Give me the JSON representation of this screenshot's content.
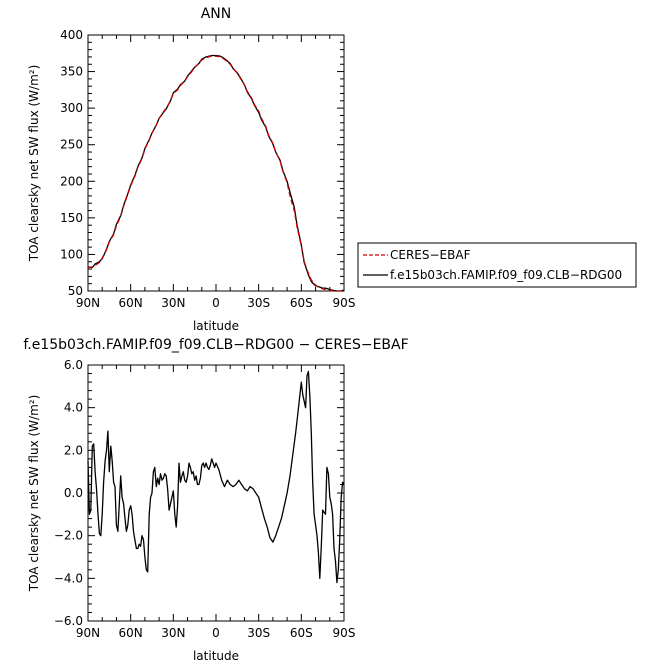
{
  "chart_data": [
    {
      "type": "line",
      "title": "ANN",
      "xlabel": "latitude",
      "ylabel": "TOA clearsky net SW flux (W/m²)",
      "xlim": [
        90,
        -90
      ],
      "ylim": [
        50,
        400
      ],
      "x_ticks": [
        "90N",
        "60N",
        "30N",
        "0",
        "30S",
        "60S",
        "90S"
      ],
      "x_tick_values": [
        90,
        60,
        30,
        0,
        -30,
        -60,
        -90
      ],
      "y_ticks": [
        "50",
        "100",
        "150",
        "200",
        "250",
        "300",
        "350",
        "400"
      ],
      "y_tick_values": [
        50,
        100,
        150,
        200,
        250,
        300,
        350,
        400
      ],
      "legend_position": "right",
      "series": [
        {
          "name": "CERES−EBAF",
          "color": "#cc0000",
          "dash": "dashed",
          "x": [
            90,
            87,
            85,
            82,
            80,
            77,
            75,
            72,
            70,
            67,
            65,
            62,
            60,
            57,
            55,
            52,
            50,
            47,
            45,
            42,
            40,
            37,
            35,
            32,
            30,
            27,
            25,
            22,
            20,
            17,
            15,
            12,
            10,
            7,
            5,
            3,
            0,
            -3,
            -5,
            -7,
            -10,
            -12,
            -15,
            -17,
            -20,
            -22,
            -25,
            -27,
            -30,
            -32,
            -35,
            -37,
            -40,
            -42,
            -45,
            -47,
            -50,
            -52,
            -55,
            -57,
            -60,
            -62,
            -65,
            -67,
            -70,
            -72,
            -75,
            -77,
            -80,
            -82,
            -85,
            -87,
            -90
          ],
          "y": [
            82,
            83,
            85,
            89,
            95,
            106,
            117,
            127,
            139,
            152,
            166,
            182,
            194,
            207,
            219,
            231,
            244,
            256,
            266,
            277,
            286,
            295,
            300,
            310,
            320,
            325,
            331,
            337,
            343,
            350,
            356,
            361,
            366,
            369,
            370,
            371,
            371,
            370,
            368,
            365,
            360,
            354,
            348,
            341,
            332,
            323,
            314,
            305,
            296,
            286,
            275,
            263,
            252,
            240,
            228,
            214,
            198,
            180,
            160,
            137,
            112,
            90,
            74,
            65,
            58,
            55,
            53,
            52,
            51,
            50,
            50,
            50,
            50
          ]
        },
        {
          "name": "f.e15b03ch.FAMIP.f09_f09.CLB−RDG00",
          "color": "#000000",
          "dash": "solid",
          "x": [
            90,
            87,
            85,
            82,
            80,
            77,
            75,
            72,
            70,
            67,
            65,
            62,
            60,
            57,
            55,
            52,
            50,
            47,
            45,
            42,
            40,
            37,
            35,
            32,
            30,
            27,
            25,
            22,
            20,
            17,
            15,
            12,
            10,
            7,
            5,
            3,
            0,
            -3,
            -5,
            -7,
            -10,
            -12,
            -15,
            -17,
            -20,
            -22,
            -25,
            -27,
            -30,
            -32,
            -35,
            -37,
            -40,
            -42,
            -45,
            -47,
            -50,
            -52,
            -55,
            -57,
            -60,
            -62,
            -65,
            -67,
            -70,
            -72,
            -75,
            -77,
            -80,
            -82,
            -85,
            -87,
            -90
          ],
          "y": [
            83,
            82,
            87,
            90,
            94,
            107,
            118,
            128,
            141,
            153,
            167,
            183,
            195,
            208,
            220,
            232,
            245,
            257,
            266,
            277,
            286,
            294,
            299,
            310,
            321,
            326,
            332,
            337,
            344,
            351,
            356,
            361,
            367,
            370,
            371,
            372,
            372,
            371,
            369,
            366,
            361,
            354,
            348,
            342,
            332,
            322,
            313,
            304,
            294,
            284,
            274,
            262,
            251,
            240,
            229,
            215,
            200,
            185,
            165,
            140,
            113,
            89,
            72,
            63,
            57,
            56,
            54,
            54,
            52,
            51,
            50,
            50,
            51
          ]
        }
      ]
    },
    {
      "type": "line",
      "title": "f.e15b03ch.FAMIP.f09_f09.CLB−RDG00 − CERES−EBAF",
      "xlabel": "latitude",
      "ylabel": "TOA clearsky net SW flux (W/m²)",
      "xlim": [
        90,
        -90
      ],
      "ylim": [
        -6,
        6
      ],
      "x_ticks": [
        "90N",
        "60N",
        "30N",
        "0",
        "30S",
        "60S",
        "90S"
      ],
      "x_tick_values": [
        90,
        60,
        30,
        0,
        -30,
        -60,
        -90
      ],
      "y_ticks": [
        "−6.0",
        "−4.0",
        "−2.0",
        "0.0",
        "2.0",
        "4.0",
        "6.0"
      ],
      "y_tick_values": [
        -6,
        -4,
        -2,
        0,
        2,
        4,
        6
      ],
      "series": [
        {
          "color": "#000000",
          "x": [
            90,
            89,
            88,
            87,
            86,
            85,
            84,
            83,
            82,
            81,
            80,
            79,
            78,
            77,
            76,
            75,
            74,
            73,
            72,
            71,
            70,
            69,
            68,
            67,
            66,
            65,
            64,
            63,
            62,
            61,
            60,
            59,
            58,
            57,
            56,
            55,
            54,
            53,
            52,
            51,
            50,
            49,
            48,
            47,
            46,
            45,
            44,
            43,
            42,
            41,
            40,
            39,
            38,
            37,
            36,
            35,
            34,
            33,
            32,
            31,
            30,
            29,
            28,
            27,
            26,
            25,
            24,
            23,
            22,
            21,
            20,
            19,
            18,
            17,
            16,
            15,
            14,
            13,
            12,
            11,
            10,
            9,
            8,
            7,
            6,
            5,
            4,
            3,
            2,
            1,
            0,
            -2,
            -4,
            -6,
            -8,
            -10,
            -12,
            -14,
            -16,
            -18,
            -20,
            -22,
            -24,
            -26,
            -28,
            -30,
            -32,
            -34,
            -36,
            -38,
            -40,
            -42,
            -44,
            -46,
            -48,
            -50,
            -52,
            -54,
            -56,
            -58,
            -60,
            -61,
            -62,
            -63,
            -64,
            -65,
            -66,
            -67,
            -68,
            -69,
            -70,
            -71,
            -72,
            -73,
            -74,
            -75,
            -76,
            -77,
            -78,
            -79,
            -80,
            -81,
            -82,
            -83,
            -84,
            -85,
            -86,
            -87,
            -88,
            -89,
            -90
          ],
          "y": [
            1.5,
            -1.0,
            -0.8,
            2.2,
            2.3,
            1.0,
            0.2,
            -1.0,
            -1.9,
            -2.0,
            -1.0,
            0.5,
            1.5,
            2.0,
            2.9,
            1.0,
            2.2,
            1.5,
            0.5,
            0.3,
            -1.5,
            -1.8,
            -0.5,
            0.8,
            -0.2,
            -0.5,
            -1.2,
            -1.8,
            -1.5,
            -0.8,
            -0.6,
            -1.0,
            -1.8,
            -2.2,
            -2.6,
            -2.6,
            -2.4,
            -2.5,
            -2.0,
            -2.2,
            -3.0,
            -3.6,
            -3.7,
            -1.0,
            -0.2,
            0.0,
            1.0,
            1.2,
            0.3,
            0.7,
            0.4,
            0.9,
            0.6,
            0.7,
            0.9,
            0.8,
            0.2,
            -0.8,
            -0.5,
            -0.2,
            0.1,
            -1.0,
            -1.6,
            -0.6,
            1.4,
            0.5,
            0.8,
            1.0,
            0.6,
            0.5,
            0.8,
            1.4,
            1.2,
            0.9,
            1.0,
            0.6,
            0.8,
            0.4,
            0.4,
            0.7,
            1.3,
            1.4,
            1.2,
            1.4,
            1.2,
            1.1,
            1.3,
            1.6,
            1.4,
            1.2,
            1.4,
            1.1,
            0.6,
            0.3,
            0.6,
            0.4,
            0.3,
            0.4,
            0.6,
            0.4,
            0.2,
            0.1,
            0.3,
            0.2,
            0.0,
            -0.2,
            -0.7,
            -1.2,
            -1.6,
            -2.1,
            -2.3,
            -2.0,
            -1.6,
            -1.2,
            -0.6,
            0.0,
            0.8,
            1.8,
            2.8,
            4.0,
            5.2,
            4.6,
            4.3,
            4.0,
            5.5,
            5.7,
            4.5,
            2.8,
            0.5,
            -1.0,
            -1.5,
            -2.0,
            -2.8,
            -4.0,
            -2.6,
            -0.8,
            -0.9,
            -1.0,
            1.2,
            0.9,
            -0.2,
            -0.5,
            -1.0,
            -2.6,
            -3.2,
            -4.2,
            -3.6,
            -2.2,
            -0.2,
            0.5,
            0.4
          ]
        }
      ]
    }
  ]
}
